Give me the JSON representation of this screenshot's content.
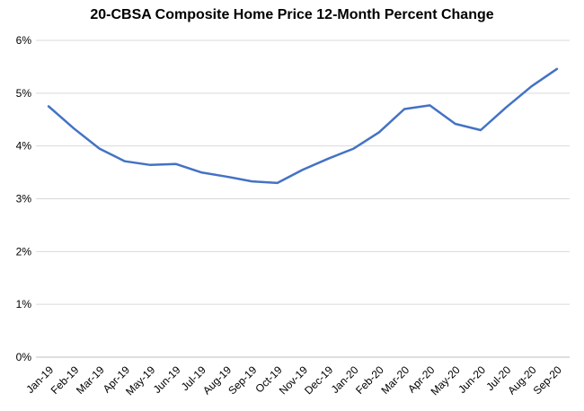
{
  "chart_data": {
    "type": "line",
    "title": "20-CBSA Composite Home Price 12-Month Percent Change",
    "xlabel": "",
    "ylabel": "",
    "categories": [
      "Jan-19",
      "Feb-19",
      "Mar-19",
      "Apr-19",
      "May-19",
      "Jun-19",
      "Jul-19",
      "Aug-19",
      "Sep-19",
      "Oct-19",
      "Nov-19",
      "Dec-19",
      "Jan-20",
      "Feb-20",
      "Mar-20",
      "Apr-20",
      "May-20",
      "Jun-20",
      "Jul-20",
      "Aug-20",
      "Sep-20"
    ],
    "series": [
      {
        "values": [
          4.75,
          4.33,
          3.95,
          3.71,
          3.64,
          3.66,
          3.5,
          3.42,
          3.33,
          3.3,
          3.55,
          3.76,
          3.95,
          4.26,
          4.7,
          4.77,
          4.42,
          4.3,
          4.73,
          5.13,
          5.46
        ]
      }
    ],
    "y_ticks": [
      "0%",
      "1%",
      "2%",
      "3%",
      "4%",
      "5%",
      "6%"
    ],
    "ylim": [
      0,
      6
    ],
    "grid": true,
    "legend": "none",
    "line_color": "#4472C4",
    "grid_color": "#D9D9D9"
  }
}
